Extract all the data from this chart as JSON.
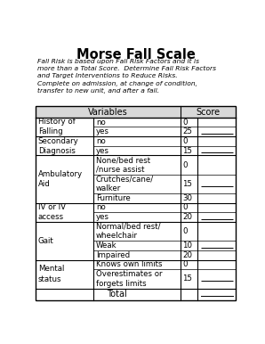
{
  "title": "Morse Fall Scale",
  "subtitle": "Fall Risk is based upon Fall Risk Factors and it is\nmore than a Total Score.  Determine Fall Risk Factors\nand Target Interventions to Reduce Risks.\nComplete on admission, at change of condition,\ntransfer to new unit, and after a fall.",
  "col_headers": [
    "Variables",
    "Score"
  ],
  "rows": [
    {
      "category": "History of\nFalling",
      "items": [
        {
          "label": "no",
          "score": "0",
          "has_line": false
        },
        {
          "label": "yes",
          "score": "25",
          "has_line": true
        }
      ]
    },
    {
      "category": "Secondary\nDiagnosis",
      "items": [
        {
          "label": "no",
          "score": "0",
          "has_line": false
        },
        {
          "label": "yes",
          "score": "15",
          "has_line": true
        }
      ]
    },
    {
      "category": "Ambulatory\nAid",
      "items": [
        {
          "label": "None/bed rest\n/nurse assist",
          "score": "0",
          "has_line": false
        },
        {
          "label": "Crutches/cane/\nwalker",
          "score": "15",
          "has_line": true
        },
        {
          "label": "Furniture",
          "score": "30",
          "has_line": false
        }
      ]
    },
    {
      "category": "IV or IV\naccess",
      "items": [
        {
          "label": "no",
          "score": "0",
          "has_line": false
        },
        {
          "label": "yes",
          "score": "20",
          "has_line": true
        }
      ]
    },
    {
      "category": "Gait",
      "items": [
        {
          "label": "Normal/bed rest/\nwheelchair",
          "score": "0",
          "has_line": false
        },
        {
          "label": "Weak",
          "score": "10",
          "has_line": true
        },
        {
          "label": "Impaired",
          "score": "20",
          "has_line": false
        }
      ]
    },
    {
      "category": "Mental\nstatus",
      "items": [
        {
          "label": "Knows own limits",
          "score": "0",
          "has_line": false
        },
        {
          "label": "Overestimates or\nforgets limits",
          "score": "15",
          "has_line": true
        }
      ]
    }
  ],
  "total_label": "Total",
  "bg_color": "#ffffff",
  "text_color": "#000000",
  "line_color": "#000000",
  "header_bg": "#d8d8d8",
  "title_font_size": 10.5,
  "subtitle_font_size": 5.4,
  "header_font_size": 7.0,
  "cell_font_size": 6.2
}
